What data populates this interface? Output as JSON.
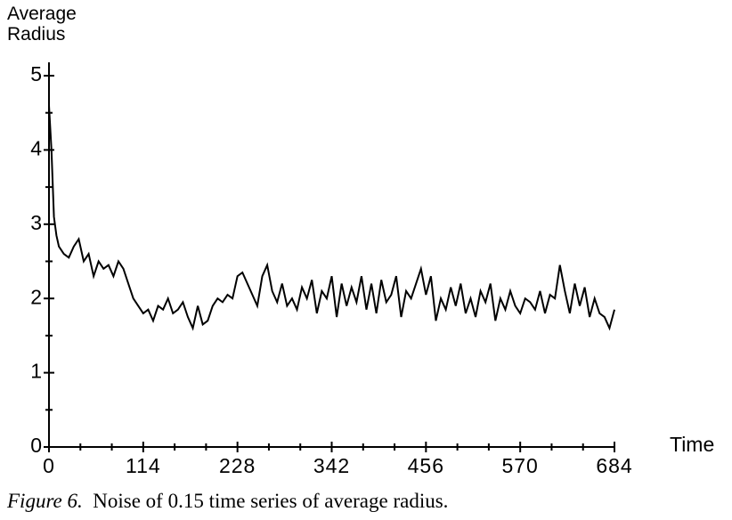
{
  "chart_data": {
    "type": "line",
    "ylabel": "Average Radius",
    "xlabel": "Time",
    "caption": {
      "label": "Figure 6.",
      "text": "Noise of 0.15 time series of average radius."
    },
    "xlim": [
      0,
      684
    ],
    "xticks": [
      0,
      114,
      228,
      342,
      456,
      570,
      684
    ],
    "ylim": [
      0,
      5
    ],
    "yticks": [
      0,
      1,
      2,
      3,
      4,
      5
    ],
    "series": [
      {
        "color": "#000000",
        "x": [
          0,
          3,
          6,
          9,
          12,
          18,
          24,
          30,
          36,
          42,
          48,
          54,
          60,
          66,
          72,
          78,
          84,
          90,
          96,
          102,
          108,
          114,
          120,
          126,
          132,
          138,
          144,
          150,
          156,
          162,
          168,
          174,
          180,
          186,
          192,
          198,
          204,
          210,
          216,
          222,
          228,
          234,
          240,
          246,
          252,
          258,
          264,
          270,
          276,
          282,
          288,
          294,
          300,
          306,
          312,
          318,
          324,
          330,
          336,
          342,
          348,
          354,
          360,
          366,
          372,
          378,
          384,
          390,
          396,
          402,
          408,
          414,
          420,
          426,
          432,
          438,
          444,
          450,
          456,
          462,
          468,
          474,
          480,
          486,
          492,
          498,
          504,
          510,
          516,
          522,
          528,
          534,
          540,
          546,
          552,
          558,
          564,
          570,
          576,
          582,
          588,
          594,
          600,
          606,
          612,
          618,
          624,
          630,
          636,
          642,
          648,
          654,
          660,
          666,
          672,
          678,
          684
        ],
        "values": [
          4.6,
          4.0,
          3.1,
          2.85,
          2.7,
          2.6,
          2.55,
          2.7,
          2.8,
          2.5,
          2.6,
          2.3,
          2.5,
          2.4,
          2.45,
          2.3,
          2.5,
          2.4,
          2.2,
          2.0,
          1.9,
          1.8,
          1.85,
          1.7,
          1.9,
          1.85,
          2.0,
          1.8,
          1.85,
          1.95,
          1.75,
          1.6,
          1.9,
          1.65,
          1.7,
          1.9,
          2.0,
          1.95,
          2.05,
          2.0,
          2.3,
          2.35,
          2.2,
          2.05,
          1.9,
          2.3,
          2.45,
          2.1,
          1.95,
          2.2,
          1.9,
          2.0,
          1.85,
          2.15,
          2.0,
          2.25,
          1.8,
          2.1,
          2.0,
          2.3,
          1.75,
          2.2,
          1.9,
          2.15,
          1.95,
          2.3,
          1.85,
          2.2,
          1.8,
          2.25,
          1.95,
          2.05,
          2.3,
          1.75,
          2.1,
          2.0,
          2.2,
          2.4,
          2.05,
          2.3,
          1.7,
          2.0,
          1.85,
          2.15,
          1.9,
          2.2,
          1.8,
          2.0,
          1.75,
          2.1,
          1.95,
          2.2,
          1.7,
          2.0,
          1.85,
          2.1,
          1.9,
          1.8,
          2.0,
          1.95,
          1.85,
          2.1,
          1.8,
          2.05,
          2.0,
          2.45,
          2.1,
          1.8,
          2.2,
          1.9,
          2.15,
          1.75,
          2.0,
          1.8,
          1.75,
          1.6,
          1.85
        ]
      }
    ]
  }
}
